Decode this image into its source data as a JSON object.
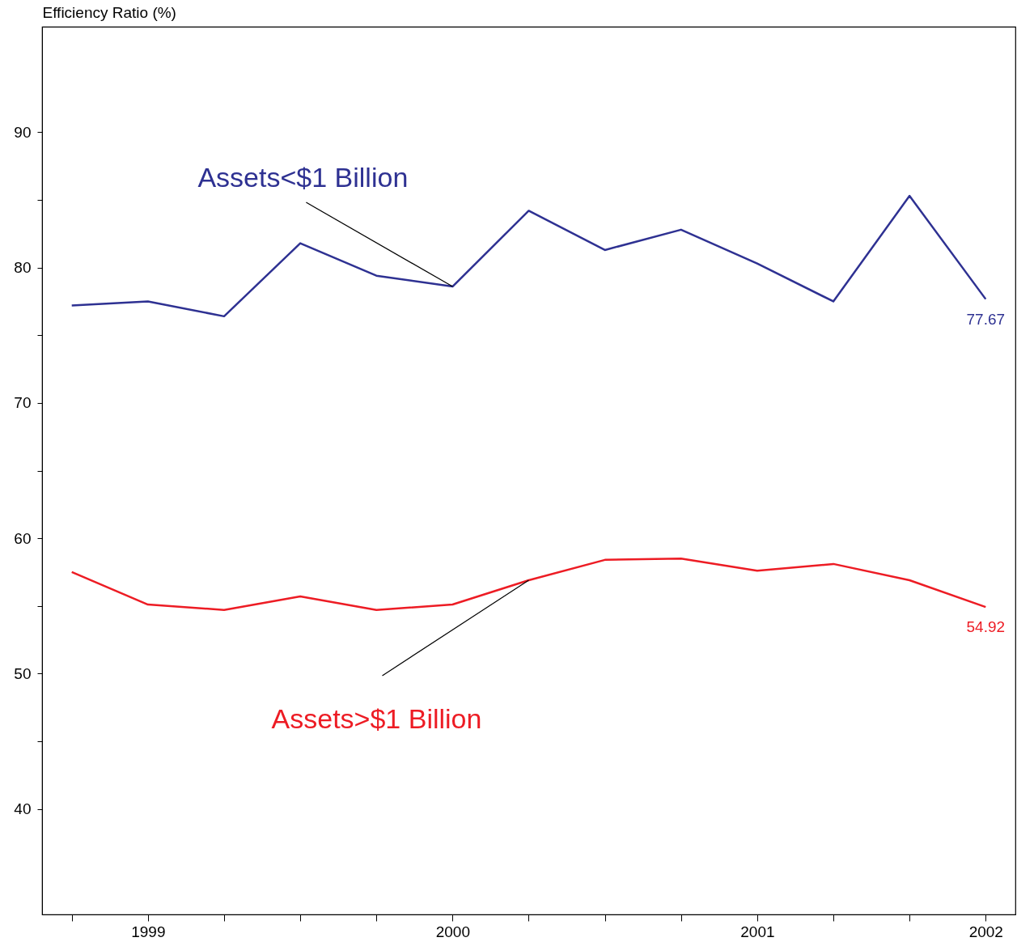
{
  "chart_data": {
    "type": "line",
    "ylabel": "Efficiency Ratio (%)",
    "categories": [
      null,
      "1999",
      null,
      null,
      null,
      "2000",
      null,
      null,
      null,
      "2001",
      null,
      null,
      "2002"
    ],
    "series": [
      {
        "name": "Assets<$1 Billion",
        "color": "#2e3192",
        "values": [
          77.2,
          77.5,
          76.4,
          81.8,
          79.4,
          78.6,
          84.2,
          81.3,
          82.8,
          80.3,
          77.5,
          85.3,
          77.67
        ],
        "value_labels": [
          null,
          null,
          null,
          null,
          null,
          null,
          null,
          null,
          null,
          null,
          null,
          null,
          "77.67"
        ]
      },
      {
        "name": "Assets>$1 Billion",
        "color": "#ed1c24",
        "values": [
          57.5,
          55.1,
          54.7,
          55.7,
          54.7,
          55.1,
          56.9,
          58.4,
          58.5,
          57.6,
          58.1,
          56.9,
          54.92
        ],
        "value_labels": [
          null,
          null,
          null,
          null,
          null,
          null,
          null,
          null,
          null,
          null,
          null,
          null,
          "54.92"
        ]
      }
    ],
    "ylim": [
      32.2,
      97.8
    ],
    "yticks": [
      40,
      {
        "value": 45,
        "label": null
      },
      50,
      {
        "value": 55,
        "label": null
      },
      60,
      {
        "value": 65,
        "label": null
      },
      70,
      {
        "value": 75,
        "label": null
      },
      80,
      {
        "value": 85,
        "label": null
      },
      90
    ],
    "grid": false,
    "line_style": "solid",
    "marker": "none"
  }
}
